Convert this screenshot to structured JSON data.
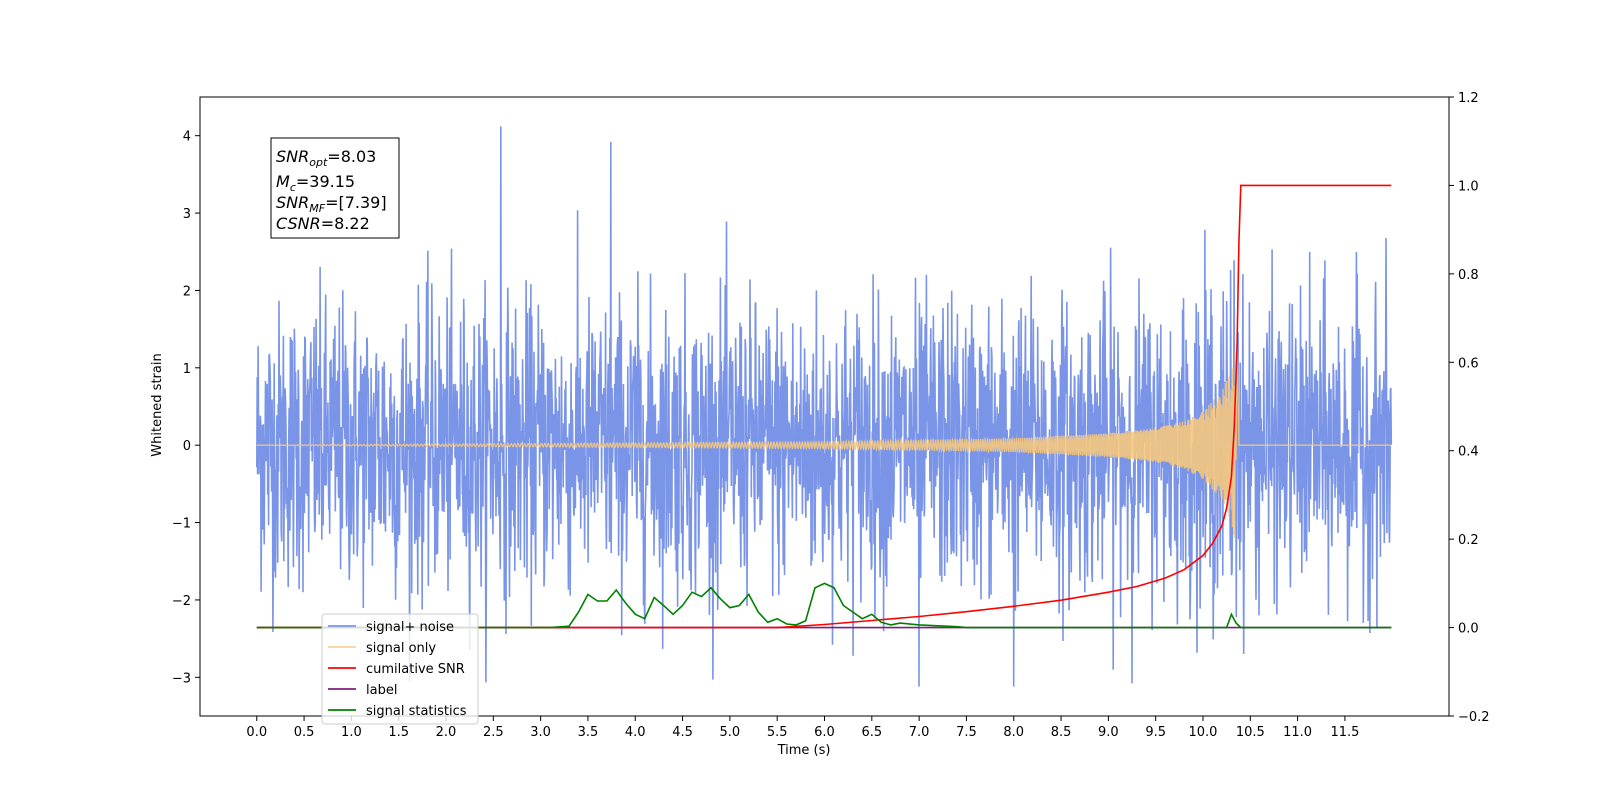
{
  "chart_data": {
    "type": "line",
    "title": "",
    "xlabel": "Time (s)",
    "ylabel": "Whitened strain",
    "xlim": [
      -0.6,
      12.6
    ],
    "ylim": [
      -3.5,
      4.5
    ],
    "y2lim": [
      -0.2,
      1.2
    ],
    "x_ticks": [
      0.0,
      0.5,
      1.0,
      1.5,
      2.0,
      2.5,
      3.0,
      3.5,
      4.0,
      4.5,
      5.0,
      5.5,
      6.0,
      6.5,
      7.0,
      7.5,
      8.0,
      8.5,
      9.0,
      9.5,
      10.0,
      10.5,
      11.0,
      11.5
    ],
    "x_tick_labels": [
      "0.0",
      "0.5",
      "1.0",
      "1.5",
      "2.0",
      "2.5",
      "3.0",
      "3.5",
      "4.0",
      "4.5",
      "5.0",
      "5.5",
      "6.0",
      "6.5",
      "7.0",
      "7.5",
      "8.0",
      "8.5",
      "9.0",
      "9.5",
      "10.0",
      "10.5",
      "11.0",
      "11.5"
    ],
    "y_ticks": [
      -3,
      -2,
      -1,
      0,
      1,
      2,
      3,
      4
    ],
    "y_tick_labels": [
      "−3",
      "−2",
      "−1",
      "0",
      "1",
      "2",
      "3",
      "4"
    ],
    "y2_ticks": [
      -0.2,
      0.0,
      0.2,
      0.4,
      0.6,
      0.8,
      1.0,
      1.2
    ],
    "y2_tick_labels": [
      "−0.2",
      "0.0",
      "0.2",
      "0.4",
      "0.6",
      "0.8",
      "1.0",
      "1.2"
    ],
    "grid": false,
    "legend_position": "lower-left",
    "annotation_lines": [
      {
        "sym": "SNR",
        "sub": "opt",
        "val": "=8.03"
      },
      {
        "sym": "M",
        "sub": "c",
        "val": "=39.15"
      },
      {
        "sym": "SNR",
        "sub": "MF",
        "val": "=[7.39]"
      },
      {
        "sym": "CSNR",
        "sub": "",
        "val": "=8.22"
      }
    ],
    "series": [
      {
        "name": "signal+ noise",
        "axis": "left",
        "color": "#7a95e8",
        "kind": "whitened gaussian noise, std ~1.0, extremes ~[-3.1, 4.1]",
        "x_range": [
          0.0,
          11.99
        ],
        "std": 1.0,
        "peaks": [
          {
            "x": 2.58,
            "y": 4.12
          },
          {
            "x": 3.74,
            "y": 3.92
          },
          {
            "x": 7.0,
            "y": -3.12
          },
          {
            "x": 8.0,
            "y": -3.12
          }
        ]
      },
      {
        "name": "signal only",
        "axis": "left",
        "color": "#f5c77e",
        "kind": "inspiral chirp ending at merger",
        "merger_time": 10.36,
        "points": [
          {
            "x": 0.0,
            "amp": 0.0
          },
          {
            "x": 6.0,
            "amp": 0.02
          },
          {
            "x": 8.0,
            "amp": 0.04
          },
          {
            "x": 9.0,
            "amp": 0.07
          },
          {
            "x": 9.5,
            "amp": 0.1
          },
          {
            "x": 9.8,
            "amp": 0.14
          },
          {
            "x": 10.0,
            "amp": 0.2
          },
          {
            "x": 10.2,
            "amp": 0.32
          },
          {
            "x": 10.3,
            "amp": 0.45
          },
          {
            "x": 10.36,
            "amp": 0.62
          },
          {
            "x": 10.38,
            "amp": 0.0
          },
          {
            "x": 11.99,
            "amp": 0.0
          }
        ]
      },
      {
        "name": "cumilative SNR",
        "axis": "right",
        "color": "#ff0000",
        "x": [
          0.0,
          5.5,
          6.0,
          6.5,
          7.0,
          7.5,
          8.0,
          8.5,
          9.0,
          9.3,
          9.6,
          9.8,
          10.0,
          10.1,
          10.2,
          10.25,
          10.3,
          10.33,
          10.36,
          10.38,
          10.4,
          11.99
        ],
        "values": [
          0.0,
          0.0,
          0.007,
          0.016,
          0.025,
          0.036,
          0.048,
          0.062,
          0.08,
          0.093,
          0.112,
          0.131,
          0.163,
          0.19,
          0.23,
          0.27,
          0.34,
          0.45,
          0.63,
          0.87,
          1.0,
          1.0
        ]
      },
      {
        "name": "label",
        "axis": "right",
        "color": "#7b1f7b",
        "x": [
          0.0,
          10.35,
          10.35,
          11.99
        ],
        "values": [
          0.0,
          0.0,
          0.0,
          0.0
        ]
      },
      {
        "name": "signal statistics",
        "axis": "right",
        "color": "#008000",
        "x": [
          0.0,
          2.4,
          3.1,
          3.3,
          3.4,
          3.5,
          3.6,
          3.7,
          3.8,
          3.9,
          4.0,
          4.1,
          4.2,
          4.3,
          4.4,
          4.5,
          4.6,
          4.7,
          4.8,
          4.9,
          5.0,
          5.1,
          5.2,
          5.3,
          5.4,
          5.5,
          5.6,
          5.7,
          5.8,
          5.9,
          6.0,
          6.1,
          6.2,
          6.3,
          6.4,
          6.5,
          6.6,
          6.7,
          6.8,
          7.0,
          7.2,
          7.4,
          7.5,
          10.25,
          10.3,
          10.35,
          10.4,
          11.99
        ],
        "values": [
          0.0,
          0.0,
          0.0,
          0.003,
          0.035,
          0.075,
          0.06,
          0.06,
          0.085,
          0.055,
          0.03,
          0.02,
          0.068,
          0.05,
          0.03,
          0.05,
          0.08,
          0.07,
          0.09,
          0.065,
          0.045,
          0.05,
          0.075,
          0.035,
          0.012,
          0.02,
          0.008,
          0.006,
          0.015,
          0.09,
          0.1,
          0.09,
          0.05,
          0.035,
          0.02,
          0.03,
          0.012,
          0.006,
          0.01,
          0.006,
          0.004,
          0.002,
          0.0,
          0.0,
          0.03,
          0.01,
          0.0,
          0.0
        ]
      }
    ]
  }
}
